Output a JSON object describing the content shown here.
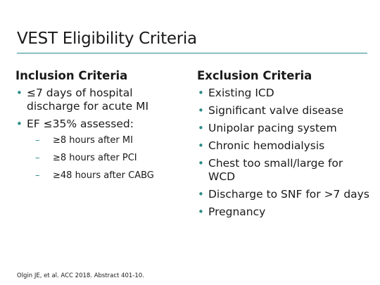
{
  "slide": {
    "title": "VEST Eligibility Criteria",
    "accent_color": "#2a8a86",
    "citation": "Olgin JE, et al. ACC 2018. Abstract 401-10."
  },
  "inclusion": {
    "heading": "Inclusion Criteria",
    "items": [
      {
        "text": "≤7 days of hospital discharge for acute MI"
      },
      {
        "text": "EF ≤35% assessed:"
      }
    ],
    "subitems": [
      "≥8 hours after MI",
      "≥8 hours after PCI",
      "≥48 hours after CABG"
    ]
  },
  "exclusion": {
    "heading": "Exclusion Criteria",
    "items": [
      "Existing ICD",
      "Significant valve disease",
      "Unipolar pacing system",
      "Chronic hemodialysis",
      "Chest too small/large for WCD",
      "Discharge to SNF for >7 days",
      "Pregnancy"
    ]
  },
  "icons": {
    "bullet": "bullet-dot",
    "sub_bullet": "en-dash"
  }
}
